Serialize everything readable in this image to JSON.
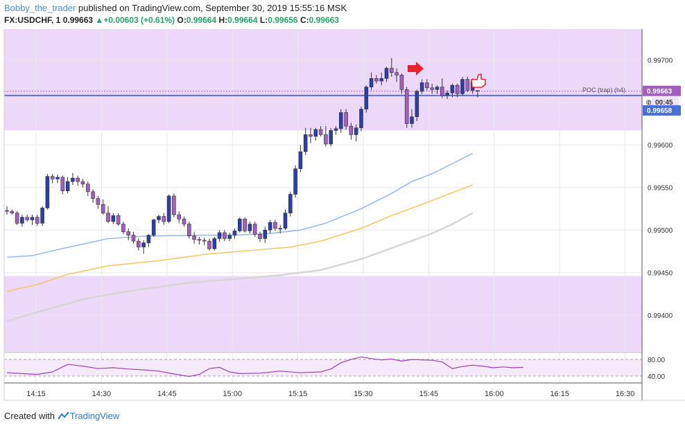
{
  "header": {
    "user": "Bobby_the_trader",
    "published": "published on TradingView.com, September 30, 2019 15:55:16 MSK",
    "symbol": "FX:USDCHF, 1",
    "last": "0.99663",
    "change": "+0.00603 (+0.61%)",
    "o_label": "O:",
    "o_value": "0.99664",
    "h_label": "H:",
    "h_value": "0.99664",
    "l_label": "L:",
    "l_value": "0.99656",
    "c_label": "C:",
    "c_value": "0.99663",
    "up_arrow": "▲"
  },
  "footer": {
    "created_with": "Created with",
    "brand": "TradingView"
  },
  "colors": {
    "zone": "#ecd8f8",
    "bull": "#2a3fae",
    "bear": "#a45ec0",
    "ma_fast": "#9bbbe6",
    "ma_mid": "#f2c96a",
    "ma_slow": "#d6d6d6",
    "poc_line": "#5a6fd6",
    "price_tag": "#a45ec0",
    "poc_tag": "#4a6fd6",
    "rsi": "#9b3fb6",
    "arrow": "#e8232b"
  },
  "annotations": {
    "poc_label": "POC (trap) (h4)",
    "price_tag": "0.99663",
    "countdown": "00:45",
    "poc_tag": "0.99658",
    "small_zero": "0",
    "arrow_icon": "right-arrow",
    "hand_icon": "thumbs-up-hand"
  },
  "chart_data": {
    "type": "candlestick",
    "title": "FX:USDCHF, 1",
    "x_ticks": [
      "14:15",
      "14:30",
      "14:45",
      "15:00",
      "15:15",
      "15:30",
      "15:45",
      "16:00",
      "16:15",
      "16:30"
    ],
    "y_ticks": [
      "0.99400",
      "0.99450",
      "0.99500",
      "0.99550",
      "0.99600",
      "0.99650",
      "0.99700"
    ],
    "ylim": [
      0.99357,
      0.99736
    ],
    "zones": [
      {
        "from": 0.99617,
        "to": 0.99736
      },
      {
        "from": 0.99357,
        "to": 0.99446
      }
    ],
    "poc_level": 0.99658,
    "current_price": 0.99663,
    "candles": [
      [
        "14:09",
        0.99523,
        0.99528,
        0.99518,
        0.99522
      ],
      [
        "14:10",
        0.99522,
        0.99524,
        0.99518,
        0.9952
      ],
      [
        "14:11",
        0.9952,
        0.99522,
        0.99506,
        0.99508
      ],
      [
        "14:12",
        0.99508,
        0.99518,
        0.99504,
        0.99515
      ],
      [
        "14:13",
        0.99515,
        0.99518,
        0.9951,
        0.99512
      ],
      [
        "14:14",
        0.99512,
        0.99518,
        0.99506,
        0.99515
      ],
      [
        "14:15",
        0.99515,
        0.99518,
        0.99505,
        0.99508
      ],
      [
        "14:16",
        0.99508,
        0.99528,
        0.99505,
        0.99526
      ],
      [
        "14:17",
        0.99526,
        0.99566,
        0.99524,
        0.99563
      ],
      [
        "14:18",
        0.99563,
        0.99566,
        0.99555,
        0.9956
      ],
      [
        "14:19",
        0.9956,
        0.99565,
        0.99555,
        0.99562
      ],
      [
        "14:20",
        0.99562,
        0.99564,
        0.99542,
        0.99546
      ],
      [
        "14:21",
        0.99546,
        0.99562,
        0.99543,
        0.99557
      ],
      [
        "14:22",
        0.99557,
        0.99567,
        0.99553,
        0.99561
      ],
      [
        "14:23",
        0.99561,
        0.99564,
        0.99552,
        0.99557
      ],
      [
        "14:24",
        0.99557,
        0.9956,
        0.9955,
        0.99554
      ],
      [
        "14:25",
        0.99554,
        0.99557,
        0.9954,
        0.99545
      ],
      [
        "14:26",
        0.99545,
        0.99548,
        0.99532,
        0.99537
      ],
      [
        "14:27",
        0.99537,
        0.9954,
        0.99525,
        0.9953
      ],
      [
        "14:28",
        0.9953,
        0.99536,
        0.99518,
        0.9952
      ],
      [
        "14:29",
        0.9952,
        0.99528,
        0.99508,
        0.9951
      ],
      [
        "14:30",
        0.9951,
        0.9952,
        0.99507,
        0.99517
      ],
      [
        "14:31",
        0.99517,
        0.9952,
        0.99505,
        0.99507
      ],
      [
        "14:32",
        0.99507,
        0.9951,
        0.99495,
        0.99498
      ],
      [
        "14:33",
        0.99498,
        0.99502,
        0.99488,
        0.99494
      ],
      [
        "14:34",
        0.99494,
        0.99498,
        0.99484,
        0.99487
      ],
      [
        "14:35",
        0.99487,
        0.9949,
        0.99476,
        0.9948
      ],
      [
        "14:36",
        0.9948,
        0.99488,
        0.99472,
        0.99485
      ],
      [
        "14:37",
        0.99485,
        0.99495,
        0.9948,
        0.99494
      ],
      [
        "14:38",
        0.99494,
        0.99513,
        0.99492,
        0.99512
      ],
      [
        "14:39",
        0.99512,
        0.99518,
        0.99508,
        0.99516
      ],
      [
        "14:40",
        0.99516,
        0.9952,
        0.99506,
        0.9951
      ],
      [
        "14:41",
        0.9951,
        0.99542,
        0.99508,
        0.9954
      ],
      [
        "14:42",
        0.9954,
        0.99543,
        0.99515,
        0.99518
      ],
      [
        "14:43",
        0.99518,
        0.99522,
        0.99508,
        0.99513
      ],
      [
        "14:44",
        0.99513,
        0.99516,
        0.99504,
        0.99507
      ],
      [
        "14:45",
        0.99507,
        0.9951,
        0.9949,
        0.99493
      ],
      [
        "14:46",
        0.99493,
        0.99498,
        0.99484,
        0.99489
      ],
      [
        "14:47",
        0.99489,
        0.99492,
        0.99483,
        0.99488
      ],
      [
        "14:48",
        0.99488,
        0.99491,
        0.99482,
        0.99487
      ],
      [
        "14:49",
        0.99487,
        0.9949,
        0.99476,
        0.99478
      ],
      [
        "14:50",
        0.99478,
        0.99492,
        0.99476,
        0.9949
      ],
      [
        "14:51",
        0.9949,
        0.995,
        0.99486,
        0.99497
      ],
      [
        "14:52",
        0.99497,
        0.995,
        0.99487,
        0.9949
      ],
      [
        "14:53",
        0.9949,
        0.99497,
        0.99487,
        0.99494
      ],
      [
        "14:54",
        0.99494,
        0.99502,
        0.9949,
        0.99499
      ],
      [
        "14:55",
        0.99499,
        0.99515,
        0.99497,
        0.99513
      ],
      [
        "14:56",
        0.99513,
        0.99515,
        0.99497,
        0.99499
      ],
      [
        "14:57",
        0.99499,
        0.9951,
        0.99496,
        0.99507
      ],
      [
        "14:58",
        0.99507,
        0.9951,
        0.99492,
        0.99495
      ],
      [
        "14:59",
        0.99495,
        0.99498,
        0.99486,
        0.9949
      ],
      [
        "15:00",
        0.9949,
        0.99504,
        0.99485,
        0.995
      ],
      [
        "15:01",
        0.995,
        0.99512,
        0.99496,
        0.99509
      ],
      [
        "15:02",
        0.99509,
        0.99512,
        0.99499,
        0.99502
      ],
      [
        "15:03",
        0.99502,
        0.99506,
        0.99496,
        0.99502
      ],
      [
        "15:04",
        0.99502,
        0.99524,
        0.995,
        0.9952
      ],
      [
        "15:05",
        0.9952,
        0.99545,
        0.99516,
        0.99542
      ],
      [
        "15:06",
        0.99542,
        0.99576,
        0.99538,
        0.99572
      ],
      [
        "15:07",
        0.99572,
        0.996,
        0.99568,
        0.99592
      ],
      [
        "15:08",
        0.99592,
        0.9962,
        0.99588,
        0.99612
      ],
      [
        "15:09",
        0.99612,
        0.9962,
        0.99602,
        0.9961
      ],
      [
        "15:10",
        0.9961,
        0.9962,
        0.99605,
        0.99618
      ],
      [
        "15:11",
        0.99618,
        0.99622,
        0.9961,
        0.99612
      ],
      [
        "15:12",
        0.99612,
        0.99622,
        0.99598,
        0.99601
      ],
      [
        "15:13",
        0.99601,
        0.9962,
        0.99598,
        0.99617
      ],
      [
        "15:14",
        0.99617,
        0.99622,
        0.99612,
        0.99619
      ],
      [
        "15:15",
        0.99619,
        0.99642,
        0.99614,
        0.99638
      ],
      [
        "15:16",
        0.99638,
        0.99642,
        0.99618,
        0.99622
      ],
      [
        "15:17",
        0.99622,
        0.99626,
        0.99606,
        0.99612
      ],
      [
        "15:18",
        0.99612,
        0.99624,
        0.99604,
        0.9962
      ],
      [
        "15:19",
        0.9962,
        0.99645,
        0.99616,
        0.99642
      ],
      [
        "15:20",
        0.99642,
        0.9967,
        0.99638,
        0.99668
      ],
      [
        "15:21",
        0.99668,
        0.99685,
        0.99664,
        0.99678
      ],
      [
        "15:22",
        0.99678,
        0.99682,
        0.99672,
        0.99675
      ],
      [
        "15:23",
        0.99675,
        0.99685,
        0.9967,
        0.99678
      ],
      [
        "15:24",
        0.99678,
        0.99692,
        0.99674,
        0.9969
      ],
      [
        "15:25",
        0.9969,
        0.99702,
        0.9968,
        0.99685
      ],
      [
        "15:26",
        0.99685,
        0.9969,
        0.99674,
        0.99682
      ],
      [
        "15:27",
        0.99682,
        0.99684,
        0.9966,
        0.99665
      ],
      [
        "15:28",
        0.99665,
        0.99668,
        0.9962,
        0.99625
      ],
      [
        "15:29",
        0.99625,
        0.99642,
        0.9962,
        0.99633
      ],
      [
        "15:30",
        0.99633,
        0.99665,
        0.99628,
        0.99663
      ],
      [
        "15:31",
        0.99663,
        0.99677,
        0.9966,
        0.99673
      ],
      [
        "15:32",
        0.99673,
        0.99677,
        0.99664,
        0.99667
      ],
      [
        "15:33",
        0.99667,
        0.99672,
        0.9966,
        0.99665
      ],
      [
        "15:34",
        0.99665,
        0.9967,
        0.9966,
        0.99668
      ],
      [
        "15:35",
        0.99668,
        0.99678,
        0.99655,
        0.99658
      ],
      [
        "15:36",
        0.99658,
        0.99664,
        0.99654,
        0.99661
      ],
      [
        "15:37",
        0.99661,
        0.99672,
        0.99656,
        0.9967
      ],
      [
        "15:38",
        0.9967,
        0.99672,
        0.99656,
        0.9966
      ],
      [
        "15:39",
        0.9966,
        0.9968,
        0.99658,
        0.99677
      ],
      [
        "15:40",
        0.99677,
        0.9968,
        0.99662,
        0.99664
      ],
      [
        "15:41",
        0.99664,
        0.99678,
        0.9966,
        0.99674
      ],
      [
        "15:42",
        0.99664,
        0.99664,
        0.99656,
        0.99663
      ]
    ],
    "ma_fast": [
      [
        0,
        0.99468
      ],
      [
        5,
        0.9947
      ],
      [
        10,
        0.99477
      ],
      [
        20,
        0.9949
      ],
      [
        28,
        0.99493
      ],
      [
        38,
        0.99494
      ],
      [
        45,
        0.99494
      ],
      [
        52,
        0.99496
      ],
      [
        58,
        0.995
      ],
      [
        63,
        0.99508
      ],
      [
        70,
        0.99525
      ],
      [
        76,
        0.99543
      ],
      [
        80,
        0.99557
      ],
      [
        84,
        0.99566
      ],
      [
        88,
        0.99578
      ],
      [
        92,
        0.9959
      ]
    ],
    "ma_mid": [
      [
        0,
        0.99428
      ],
      [
        6,
        0.99436
      ],
      [
        12,
        0.99448
      ],
      [
        20,
        0.99458
      ],
      [
        30,
        0.99464
      ],
      [
        40,
        0.99472
      ],
      [
        50,
        0.99477
      ],
      [
        56,
        0.9948
      ],
      [
        62,
        0.99487
      ],
      [
        70,
        0.99502
      ],
      [
        76,
        0.99517
      ],
      [
        82,
        0.9953
      ],
      [
        88,
        0.99544
      ],
      [
        92,
        0.99553
      ]
    ],
    "ma_slow": [
      [
        0,
        0.99393
      ],
      [
        8,
        0.99407
      ],
      [
        16,
        0.9942
      ],
      [
        26,
        0.9943
      ],
      [
        36,
        0.99438
      ],
      [
        46,
        0.99443
      ],
      [
        54,
        0.99447
      ],
      [
        62,
        0.99453
      ],
      [
        70,
        0.99466
      ],
      [
        78,
        0.99483
      ],
      [
        84,
        0.99496
      ],
      [
        88,
        0.99507
      ],
      [
        92,
        0.9952
      ]
    ],
    "rsi": {
      "y_ticks": [
        "80.00",
        "40.00"
      ],
      "levels": [
        80,
        40
      ],
      "values": [
        [
          0,
          48
        ],
        [
          3,
          46
        ],
        [
          6,
          44
        ],
        [
          9,
          50
        ],
        [
          12,
          68
        ],
        [
          15,
          64
        ],
        [
          18,
          58
        ],
        [
          21,
          60
        ],
        [
          24,
          57
        ],
        [
          27,
          55
        ],
        [
          30,
          52
        ],
        [
          33,
          45
        ],
        [
          36,
          39
        ],
        [
          38,
          44
        ],
        [
          40,
          58
        ],
        [
          42,
          61
        ],
        [
          44,
          50
        ],
        [
          46,
          46
        ],
        [
          50,
          47
        ],
        [
          54,
          52
        ],
        [
          58,
          48
        ],
        [
          62,
          50
        ],
        [
          64,
          57
        ],
        [
          66,
          72
        ],
        [
          68,
          80
        ],
        [
          70,
          86
        ],
        [
          72,
          82
        ],
        [
          74,
          79
        ],
        [
          76,
          81
        ],
        [
          78,
          76
        ],
        [
          80,
          80
        ],
        [
          82,
          79
        ],
        [
          84,
          78
        ],
        [
          86,
          74
        ],
        [
          88,
          58
        ],
        [
          90,
          63
        ],
        [
          92,
          66
        ],
        [
          94,
          64
        ],
        [
          96,
          60
        ],
        [
          98,
          62
        ],
        [
          100,
          60
        ],
        [
          102,
          61
        ]
      ]
    }
  }
}
